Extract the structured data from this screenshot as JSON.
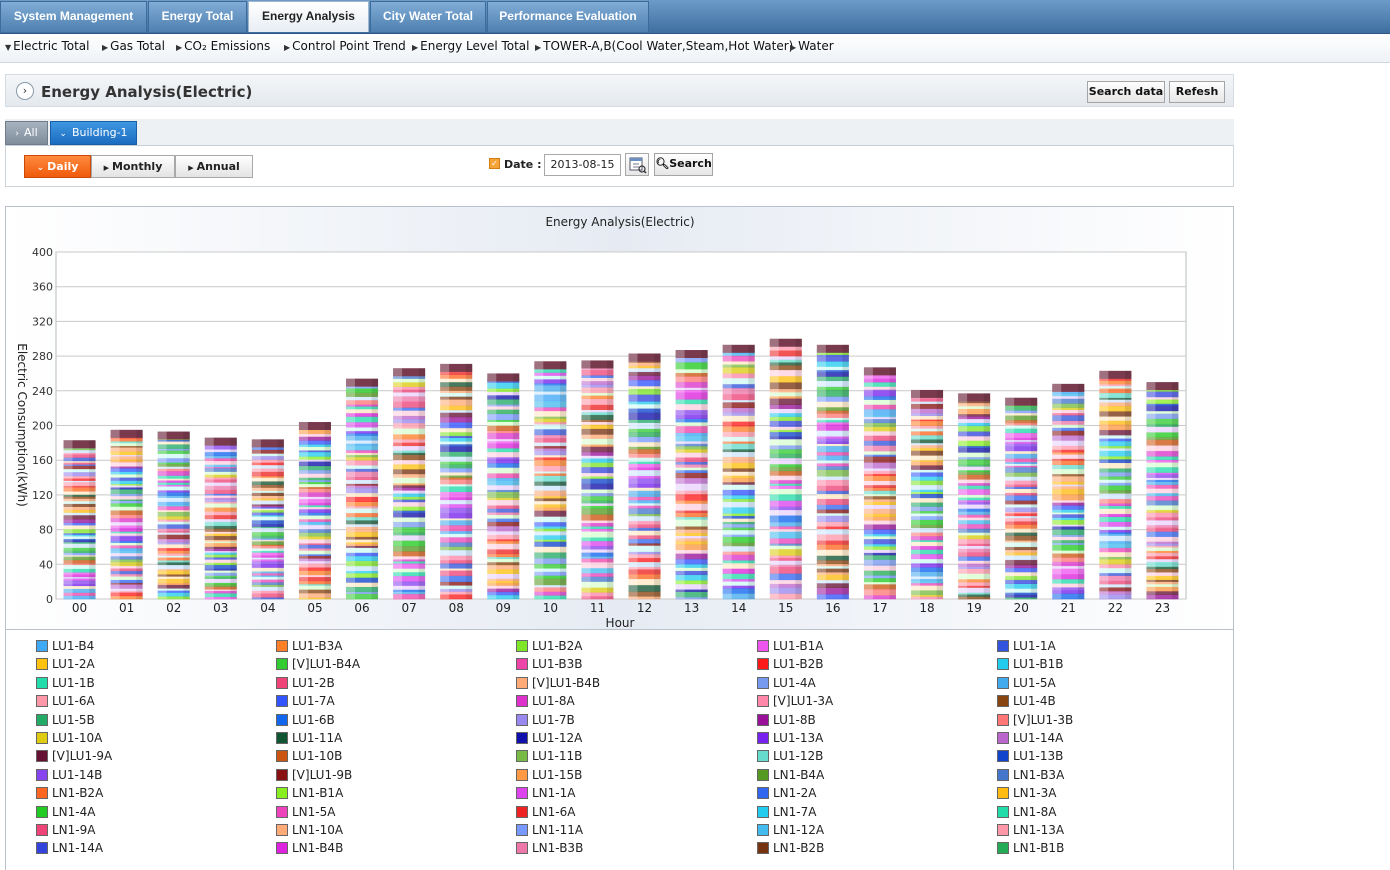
{
  "top_nav": [
    {
      "label": "System Management",
      "active": false
    },
    {
      "label": "Energy Total",
      "active": false
    },
    {
      "label": "Energy Analysis",
      "active": true
    },
    {
      "label": "City Water Total",
      "active": false
    },
    {
      "label": "Performance Evaluation",
      "active": false
    }
  ],
  "sub_nav": [
    {
      "label": "Electric Total",
      "arrow": "down"
    },
    {
      "label": "Gas Total",
      "arrow": "right"
    },
    {
      "label": "CO₂ Emissions",
      "arrow": "right"
    },
    {
      "label": "Control Point Trend",
      "arrow": "right"
    },
    {
      "label": "Energy Level Total",
      "arrow": "right"
    },
    {
      "label": "TOWER-A,B(Cool Water,Steam,Hot Water)",
      "arrow": "right"
    },
    {
      "label": "Water",
      "arrow": "right"
    }
  ],
  "panel": {
    "title": "Energy Analysis(Electric)",
    "search_data_label": "Search data",
    "refresh_label": "Refesh"
  },
  "building_tabs": [
    {
      "label": "All",
      "active": false
    },
    {
      "label": "Building-1",
      "active": true
    }
  ],
  "period": {
    "daily_label": "Daily",
    "monthly_label": "Monthly",
    "annual_label": "Annual",
    "selected": "Daily"
  },
  "date_filter": {
    "label": "Date :",
    "value": "2013-08-15",
    "search_label": "Search"
  },
  "chart_data": {
    "type": "bar",
    "stacked": true,
    "title": "Energy Analysis(Electric)",
    "xlabel": "Hour",
    "ylabel": "Electric Consumption(kWh)",
    "ylim": [
      0,
      400
    ],
    "yticks": [
      0,
      40,
      80,
      120,
      160,
      200,
      240,
      280,
      320,
      360,
      400
    ],
    "grid": true,
    "legend_position": "bottom",
    "categories": [
      "00",
      "01",
      "02",
      "03",
      "04",
      "05",
      "06",
      "07",
      "08",
      "09",
      "10",
      "11",
      "12",
      "13",
      "14",
      "15",
      "16",
      "17",
      "18",
      "19",
      "20",
      "21",
      "22",
      "23"
    ],
    "totals": [
      183,
      195,
      193,
      186,
      184,
      204,
      254,
      266,
      271,
      260,
      274,
      275,
      283,
      287,
      293,
      300,
      293,
      267,
      241,
      237,
      232,
      248,
      263,
      250
    ]
  },
  "legend_items": [
    {
      "name": "LU1-B4",
      "color": "#3fa9f5"
    },
    {
      "name": "LU1-B3A",
      "color": "#ff7f27"
    },
    {
      "name": "LU1-B2A",
      "color": "#7fe52a"
    },
    {
      "name": "LU1-B1A",
      "color": "#ee55ee"
    },
    {
      "name": "LU1-1A",
      "color": "#3355dd"
    },
    {
      "name": "LU1-2A",
      "color": "#ffc20e"
    },
    {
      "name": "[V]LU1-B4A",
      "color": "#33cc33"
    },
    {
      "name": "LU1-B3B",
      "color": "#ee44aa"
    },
    {
      "name": "LU1-B2B",
      "color": "#ff1a1a"
    },
    {
      "name": "LU1-B1B",
      "color": "#22ccee"
    },
    {
      "name": "LU1-1B",
      "color": "#22ddaa"
    },
    {
      "name": "LU1-2B",
      "color": "#ee4477"
    },
    {
      "name": "[V]LU1-B4B",
      "color": "#ffaa77"
    },
    {
      "name": "LU1-4A",
      "color": "#7799ee"
    },
    {
      "name": "LU1-5A",
      "color": "#44aaee"
    },
    {
      "name": "LU1-6A",
      "color": "#ff99aa"
    },
    {
      "name": "LU1-7A",
      "color": "#3355ff"
    },
    {
      "name": "LU1-8A",
      "color": "#dd33cc"
    },
    {
      "name": "[V]LU1-3A",
      "color": "#ff88aa"
    },
    {
      "name": "LU1-4B",
      "color": "#884411"
    },
    {
      "name": "LU1-5B",
      "color": "#22aa66"
    },
    {
      "name": "LU1-6B",
      "color": "#1166ee"
    },
    {
      "name": "LU1-7B",
      "color": "#9988ee"
    },
    {
      "name": "LU1-8B",
      "color": "#991199"
    },
    {
      "name": "[V]LU1-3B",
      "color": "#ff7777"
    },
    {
      "name": "LU1-10A",
      "color": "#ddcc11"
    },
    {
      "name": "LU1-11A",
      "color": "#115533"
    },
    {
      "name": "LU1-12A",
      "color": "#1111aa"
    },
    {
      "name": "LU1-13A",
      "color": "#7722ee"
    },
    {
      "name": "LU1-14A",
      "color": "#bb66cc"
    },
    {
      "name": "[V]LU1-9A",
      "color": "#661133"
    },
    {
      "name": "LU1-10B",
      "color": "#cc5511"
    },
    {
      "name": "LU1-11B",
      "color": "#77bb44"
    },
    {
      "name": "LU1-12B",
      "color": "#66ddcc"
    },
    {
      "name": "LU1-13B",
      "color": "#1144cc"
    },
    {
      "name": "LU1-14B",
      "color": "#8844ee"
    },
    {
      "name": "[V]LU1-9B",
      "color": "#881111"
    },
    {
      "name": "LU1-15B",
      "color": "#ff9944"
    },
    {
      "name": "LN1-B4A",
      "color": "#559922"
    },
    {
      "name": "LN1-B3A",
      "color": "#4477cc"
    },
    {
      "name": "LN1-B2A",
      "color": "#ff6622"
    },
    {
      "name": "LN1-B1A",
      "color": "#88ee22"
    },
    {
      "name": "LN1-1A",
      "color": "#dd44ee"
    },
    {
      "name": "LN1-2A",
      "color": "#3366ee"
    },
    {
      "name": "LN1-3A",
      "color": "#ffbb11"
    },
    {
      "name": "LN1-4A",
      "color": "#22cc22"
    },
    {
      "name": "LN1-5A",
      "color": "#ee44bb"
    },
    {
      "name": "LN1-6A",
      "color": "#ee2222"
    },
    {
      "name": "LN1-7A",
      "color": "#22ccee"
    },
    {
      "name": "LN1-8A",
      "color": "#22ddaa"
    },
    {
      "name": "LN1-9A",
      "color": "#ee4477"
    },
    {
      "name": "LN1-10A",
      "color": "#ffaa77"
    },
    {
      "name": "LN1-11A",
      "color": "#7799ff"
    },
    {
      "name": "LN1-12A",
      "color": "#44bbee"
    },
    {
      "name": "LN1-13A",
      "color": "#ff99aa"
    },
    {
      "name": "LN1-14A",
      "color": "#3344dd"
    },
    {
      "name": "LN1-B4B",
      "color": "#dd22dd"
    },
    {
      "name": "LN1-B3B",
      "color": "#ee77aa"
    },
    {
      "name": "LN1-B2B",
      "color": "#773311"
    },
    {
      "name": "LN1-B1B",
      "color": "#22aa55"
    }
  ]
}
